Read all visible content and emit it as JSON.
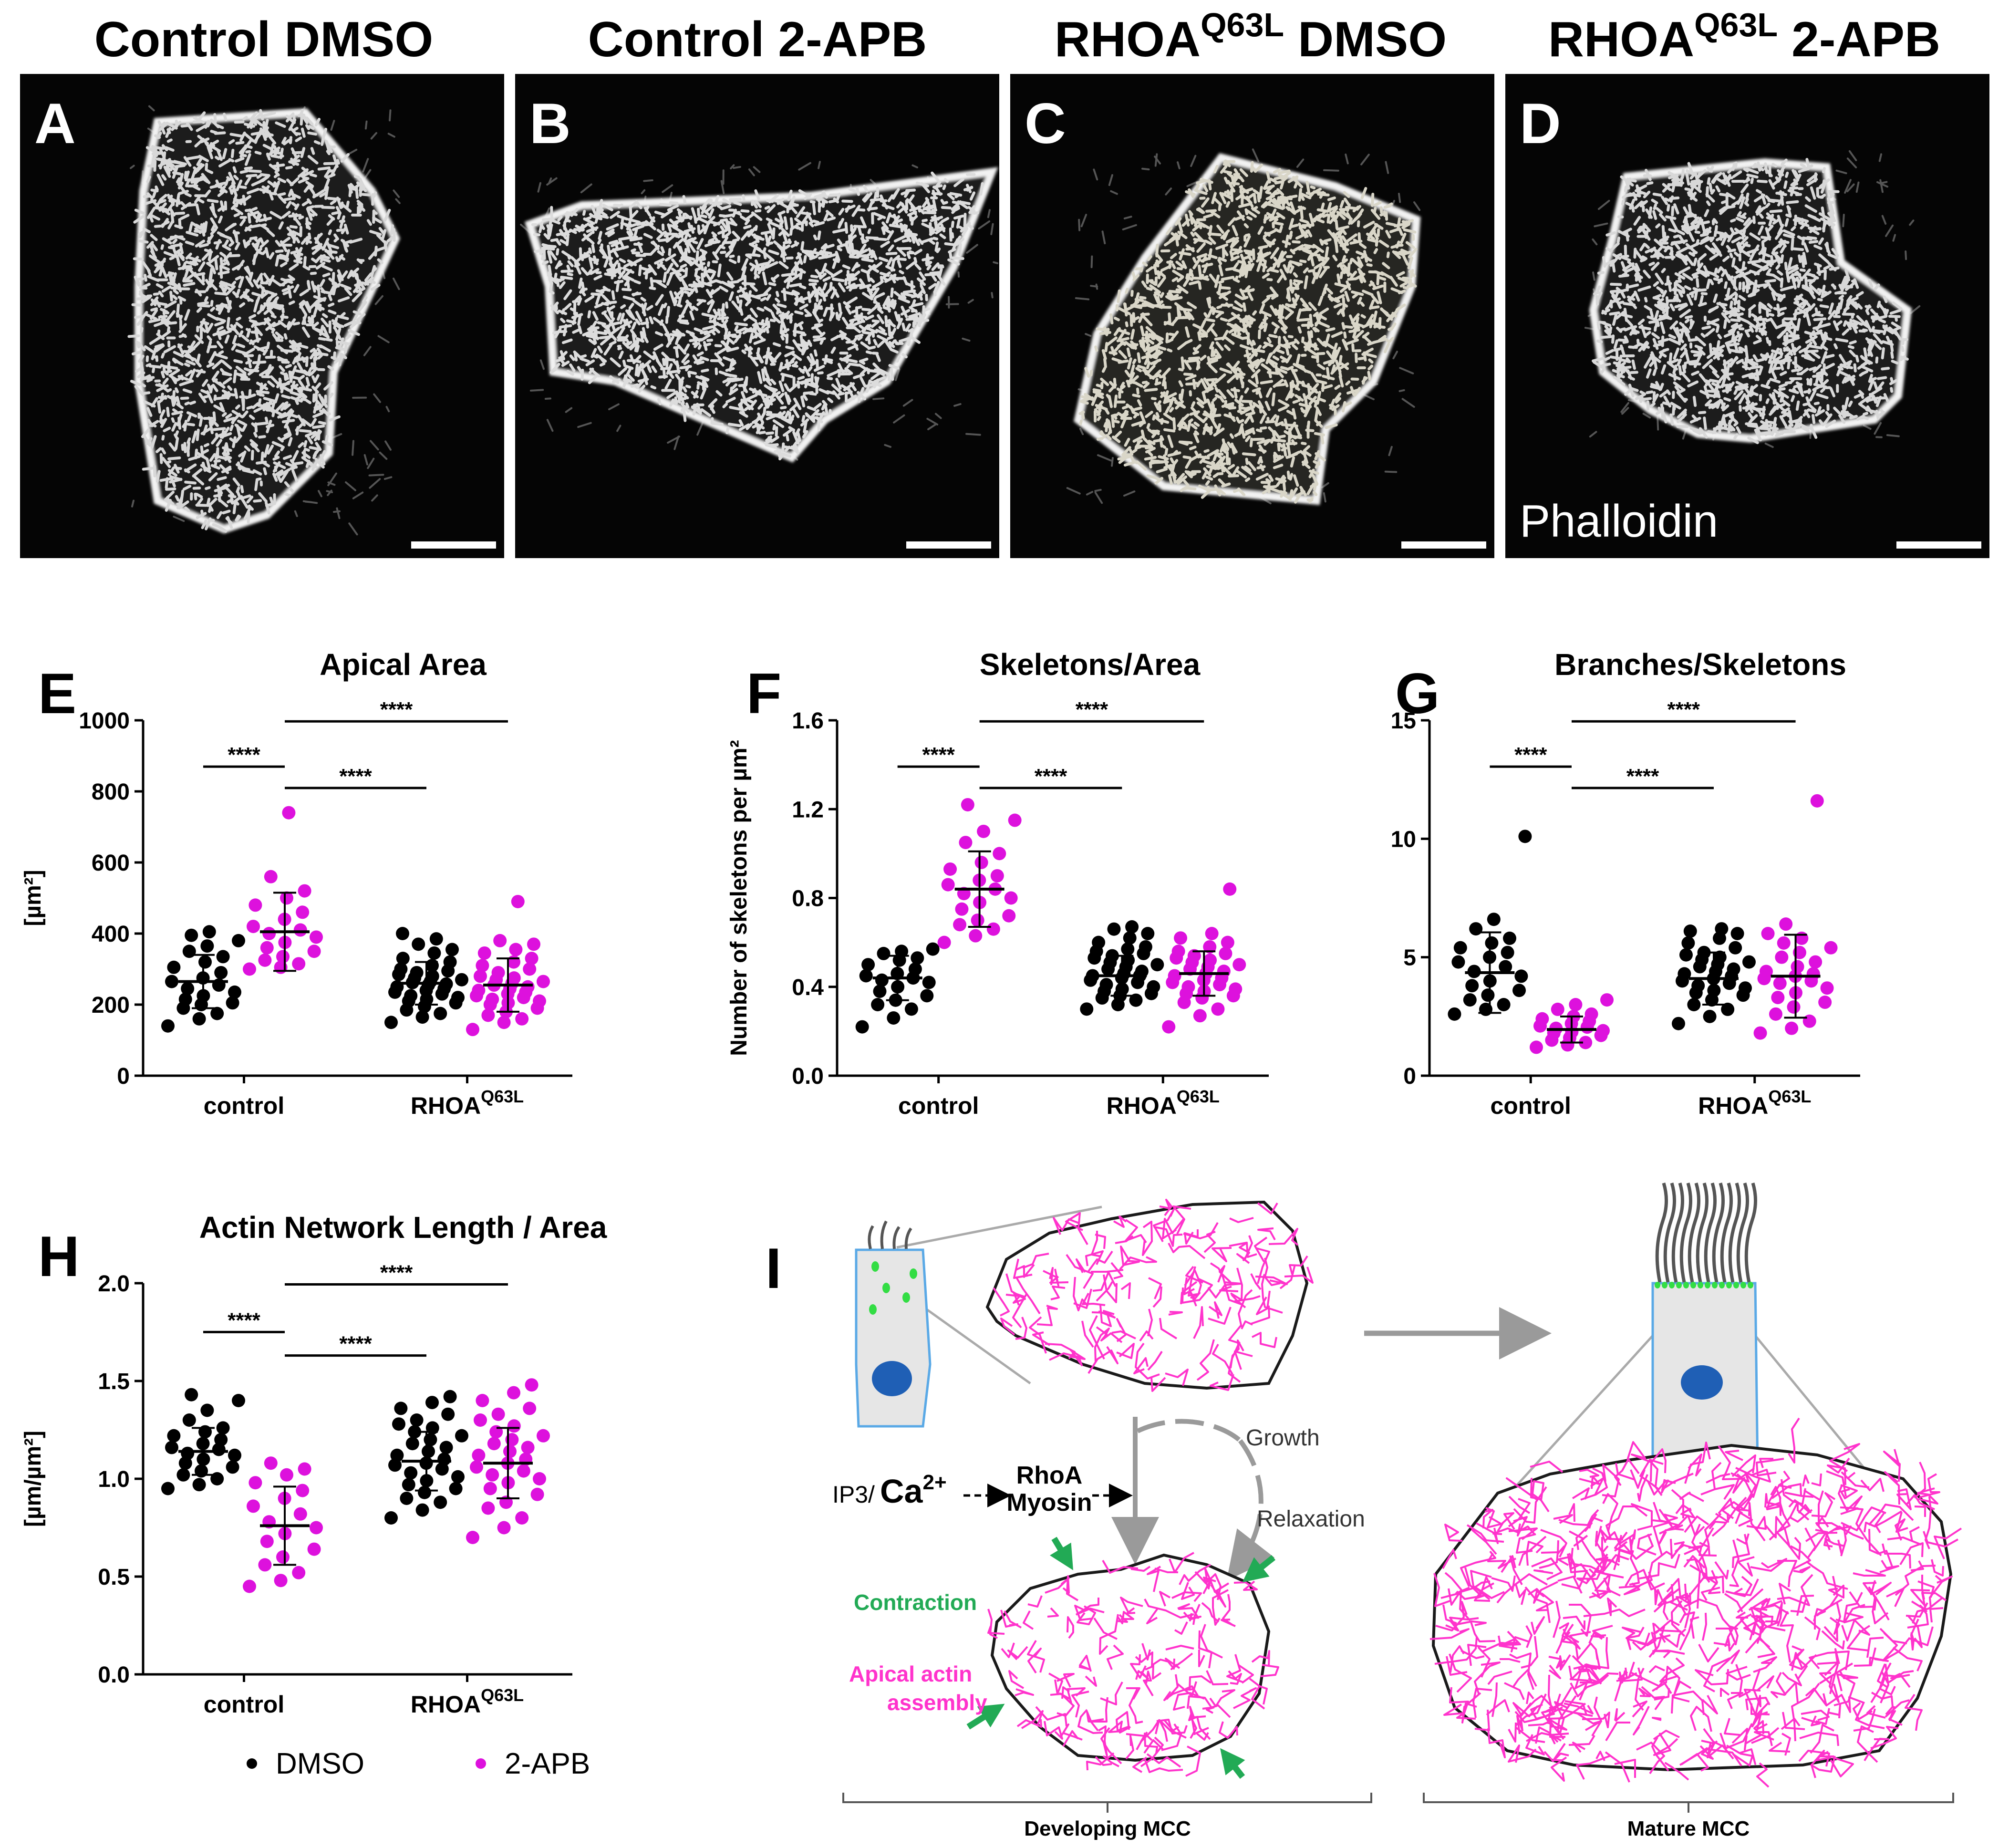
{
  "colors": {
    "dmso": "#000000",
    "apb": "#dd11dd",
    "actin": "#ff33cc",
    "contraction": "#22aa55",
    "arrow_gray": "#9a9a9a",
    "nucleus": "#1f5fb5",
    "cell_body": "#e6e6e6",
    "cell_outline": "#5aa9e6"
  },
  "micrographs": [
    {
      "letter": "A",
      "title": "Control DMSO",
      "title_sup": "",
      "title_suffix": ""
    },
    {
      "letter": "B",
      "title": "Control 2-APB",
      "title_sup": "",
      "title_suffix": ""
    },
    {
      "letter": "C",
      "title": "RHOA",
      "title_sup": "Q63L",
      "title_suffix": " DMSO"
    },
    {
      "letter": "D",
      "title": "RHOA",
      "title_sup": "Q63L",
      "title_suffix": " 2-APB",
      "stain_label": "Phalloidin"
    }
  ],
  "chart_data": [
    {
      "panel": "E",
      "type": "scatter",
      "title": "Apical Area",
      "ylabel": "[µm²]",
      "ylim": [
        0,
        1000
      ],
      "yticks": [
        "0",
        "200",
        "400",
        "600",
        "800",
        "1000"
      ],
      "groups": [
        "control",
        "RHOA"
      ],
      "group_sup": [
        "",
        "Q63L"
      ],
      "significance": [
        "****",
        "****",
        "****"
      ],
      "series": [
        {
          "name": "DMSO",
          "group": 0,
          "mean": 265,
          "sd": 75,
          "values": [
            140,
            160,
            175,
            190,
            200,
            205,
            215,
            225,
            235,
            245,
            255,
            265,
            275,
            290,
            305,
            320,
            335,
            350,
            365,
            380,
            395,
            405
          ]
        },
        {
          "name": "2-APB",
          "group": 0,
          "mean": 405,
          "sd": 110,
          "values": [
            300,
            305,
            315,
            325,
            335,
            350,
            360,
            375,
            390,
            400,
            410,
            420,
            440,
            460,
            480,
            500,
            520,
            560,
            740
          ]
        },
        {
          "name": "DMSO",
          "group": 1,
          "mean": 260,
          "sd": 60,
          "values": [
            150,
            165,
            175,
            185,
            195,
            205,
            210,
            215,
            220,
            225,
            230,
            235,
            240,
            245,
            250,
            255,
            258,
            262,
            265,
            270,
            275,
            280,
            285,
            290,
            295,
            300,
            310,
            320,
            330,
            345,
            355,
            370,
            385,
            400
          ]
        },
        {
          "name": "2-APB",
          "group": 1,
          "mean": 255,
          "sd": 75,
          "values": [
            130,
            150,
            160,
            170,
            180,
            190,
            200,
            205,
            210,
            215,
            220,
            225,
            230,
            235,
            240,
            245,
            250,
            255,
            260,
            265,
            270,
            275,
            280,
            290,
            300,
            310,
            320,
            330,
            345,
            355,
            370,
            380,
            490
          ]
        }
      ]
    },
    {
      "panel": "F",
      "type": "scatter",
      "title": "Skeletons/Area",
      "ylabel": "Number of skeletons per µm²",
      "ylim": [
        0,
        1.6
      ],
      "yticks": [
        "0.0",
        "0.4",
        "0.8",
        "1.2",
        "1.6"
      ],
      "groups": [
        "control",
        "RHOA"
      ],
      "group_sup": [
        "",
        "Q63L"
      ],
      "significance": [
        "****",
        "****",
        "****"
      ],
      "series": [
        {
          "name": "DMSO",
          "group": 0,
          "mean": 0.44,
          "sd": 0.1,
          "values": [
            0.22,
            0.26,
            0.3,
            0.32,
            0.34,
            0.36,
            0.38,
            0.4,
            0.42,
            0.43,
            0.44,
            0.45,
            0.46,
            0.48,
            0.5,
            0.52,
            0.53,
            0.55,
            0.56,
            0.57
          ]
        },
        {
          "name": "2-APB",
          "group": 0,
          "mean": 0.84,
          "sd": 0.17,
          "values": [
            0.6,
            0.63,
            0.66,
            0.68,
            0.7,
            0.72,
            0.75,
            0.78,
            0.8,
            0.82,
            0.84,
            0.86,
            0.88,
            0.9,
            0.93,
            0.96,
            1.0,
            1.05,
            1.1,
            1.15,
            1.22
          ]
        },
        {
          "name": "DMSO",
          "group": 1,
          "mean": 0.45,
          "sd": 0.09,
          "values": [
            0.3,
            0.32,
            0.34,
            0.35,
            0.36,
            0.37,
            0.38,
            0.39,
            0.4,
            0.41,
            0.42,
            0.43,
            0.44,
            0.45,
            0.45,
            0.46,
            0.47,
            0.48,
            0.49,
            0.5,
            0.51,
            0.52,
            0.53,
            0.54,
            0.55,
            0.56,
            0.57,
            0.58,
            0.6,
            0.62,
            0.64,
            0.66,
            0.67
          ]
        },
        {
          "name": "2-APB",
          "group": 1,
          "mean": 0.46,
          "sd": 0.1,
          "values": [
            0.22,
            0.27,
            0.3,
            0.33,
            0.35,
            0.36,
            0.37,
            0.38,
            0.39,
            0.4,
            0.41,
            0.42,
            0.43,
            0.44,
            0.45,
            0.46,
            0.47,
            0.48,
            0.49,
            0.5,
            0.51,
            0.52,
            0.53,
            0.54,
            0.55,
            0.56,
            0.58,
            0.6,
            0.62,
            0.64,
            0.84
          ]
        }
      ]
    },
    {
      "panel": "G",
      "type": "scatter",
      "title": "Branches/Skeletons",
      "ylabel": "",
      "ylim": [
        0,
        15
      ],
      "yticks": [
        "0",
        "5",
        "10",
        "15"
      ],
      "groups": [
        "control",
        "RHOA"
      ],
      "group_sup": [
        "",
        "Q63L"
      ],
      "significance": [
        "****",
        "****",
        "****"
      ],
      "series": [
        {
          "name": "DMSO",
          "group": 0,
          "mean": 4.35,
          "sd": 1.7,
          "values": [
            2.6,
            2.8,
            3.0,
            3.2,
            3.4,
            3.6,
            3.8,
            4.0,
            4.2,
            4.4,
            4.6,
            4.8,
            5.0,
            5.2,
            5.4,
            5.6,
            5.8,
            6.2,
            6.6,
            10.1
          ]
        },
        {
          "name": "2-APB",
          "group": 0,
          "mean": 1.95,
          "sd": 0.55,
          "values": [
            1.2,
            1.3,
            1.4,
            1.5,
            1.6,
            1.7,
            1.8,
            1.85,
            1.9,
            2.0,
            2.05,
            2.1,
            2.2,
            2.3,
            2.4,
            2.5,
            2.6,
            2.8,
            3.0,
            3.2
          ]
        },
        {
          "name": "DMSO",
          "group": 1,
          "mean": 4.1,
          "sd": 1.1,
          "values": [
            2.2,
            2.5,
            2.8,
            3.0,
            3.2,
            3.4,
            3.5,
            3.6,
            3.7,
            3.8,
            3.9,
            4.0,
            4.1,
            4.2,
            4.3,
            4.4,
            4.5,
            4.6,
            4.7,
            4.8,
            4.9,
            5.0,
            5.1,
            5.2,
            5.4,
            5.6,
            5.8,
            6.0,
            6.1,
            6.2
          ]
        },
        {
          "name": "2-APB",
          "group": 1,
          "mean": 4.2,
          "sd": 1.75,
          "values": [
            1.8,
            2.0,
            2.3,
            2.6,
            2.9,
            3.1,
            3.3,
            3.5,
            3.7,
            3.9,
            4.0,
            4.1,
            4.2,
            4.3,
            4.4,
            4.6,
            4.8,
            5.0,
            5.2,
            5.4,
            5.6,
            5.8,
            6.0,
            6.4,
            11.6
          ]
        }
      ]
    },
    {
      "panel": "H",
      "type": "scatter",
      "title": "Actin Network Length / Area",
      "ylabel": "[µm/µm²]",
      "ylim": [
        0,
        2.0
      ],
      "yticks": [
        "0.0",
        "0.5",
        "1.0",
        "1.5",
        "2.0"
      ],
      "groups": [
        "control",
        "RHOA"
      ],
      "group_sup": [
        "",
        "Q63L"
      ],
      "significance": [
        "****",
        "****",
        "****"
      ],
      "series": [
        {
          "name": "DMSO",
          "group": 0,
          "mean": 1.14,
          "sd": 0.12,
          "values": [
            0.95,
            0.97,
            1.0,
            1.02,
            1.04,
            1.06,
            1.08,
            1.1,
            1.12,
            1.13,
            1.15,
            1.16,
            1.18,
            1.2,
            1.22,
            1.24,
            1.26,
            1.3,
            1.35,
            1.4,
            1.43
          ]
        },
        {
          "name": "2-APB",
          "group": 0,
          "mean": 0.76,
          "sd": 0.2,
          "values": [
            0.45,
            0.48,
            0.52,
            0.56,
            0.6,
            0.64,
            0.68,
            0.72,
            0.75,
            0.78,
            0.82,
            0.86,
            0.9,
            0.94,
            0.98,
            1.02,
            1.05,
            1.08
          ]
        },
        {
          "name": "DMSO",
          "group": 1,
          "mean": 1.09,
          "sd": 0.15,
          "values": [
            0.8,
            0.84,
            0.88,
            0.9,
            0.93,
            0.95,
            0.97,
            0.99,
            1.01,
            1.03,
            1.05,
            1.07,
            1.08,
            1.1,
            1.12,
            1.14,
            1.16,
            1.18,
            1.2,
            1.22,
            1.24,
            1.26,
            1.28,
            1.3,
            1.33,
            1.36,
            1.39,
            1.42
          ]
        },
        {
          "name": "2-APB",
          "group": 1,
          "mean": 1.08,
          "sd": 0.18,
          "values": [
            0.7,
            0.75,
            0.8,
            0.85,
            0.88,
            0.92,
            0.95,
            0.98,
            1.0,
            1.02,
            1.04,
            1.06,
            1.08,
            1.1,
            1.12,
            1.14,
            1.16,
            1.18,
            1.2,
            1.22,
            1.24,
            1.27,
            1.3,
            1.33,
            1.36,
            1.4,
            1.44,
            1.48
          ]
        }
      ]
    }
  ],
  "legend": [
    {
      "label": "DMSO",
      "color": "#000000"
    },
    {
      "label": "2-APB",
      "color": "#dd11dd"
    }
  ],
  "schematic": {
    "letter": "I",
    "growth": "Growth",
    "relaxation": "Relaxation",
    "pathway_ip3": "IP3/",
    "pathway_ca": "Ca",
    "pathway_ca_sup": "2+",
    "pathway_rhoa": "RhoA",
    "pathway_myosin": "Myosin",
    "contraction": "Contraction",
    "actin_line1": "Apical actin",
    "actin_line2": "assembly",
    "developing": "Developing MCC",
    "mature": "Mature MCC"
  }
}
